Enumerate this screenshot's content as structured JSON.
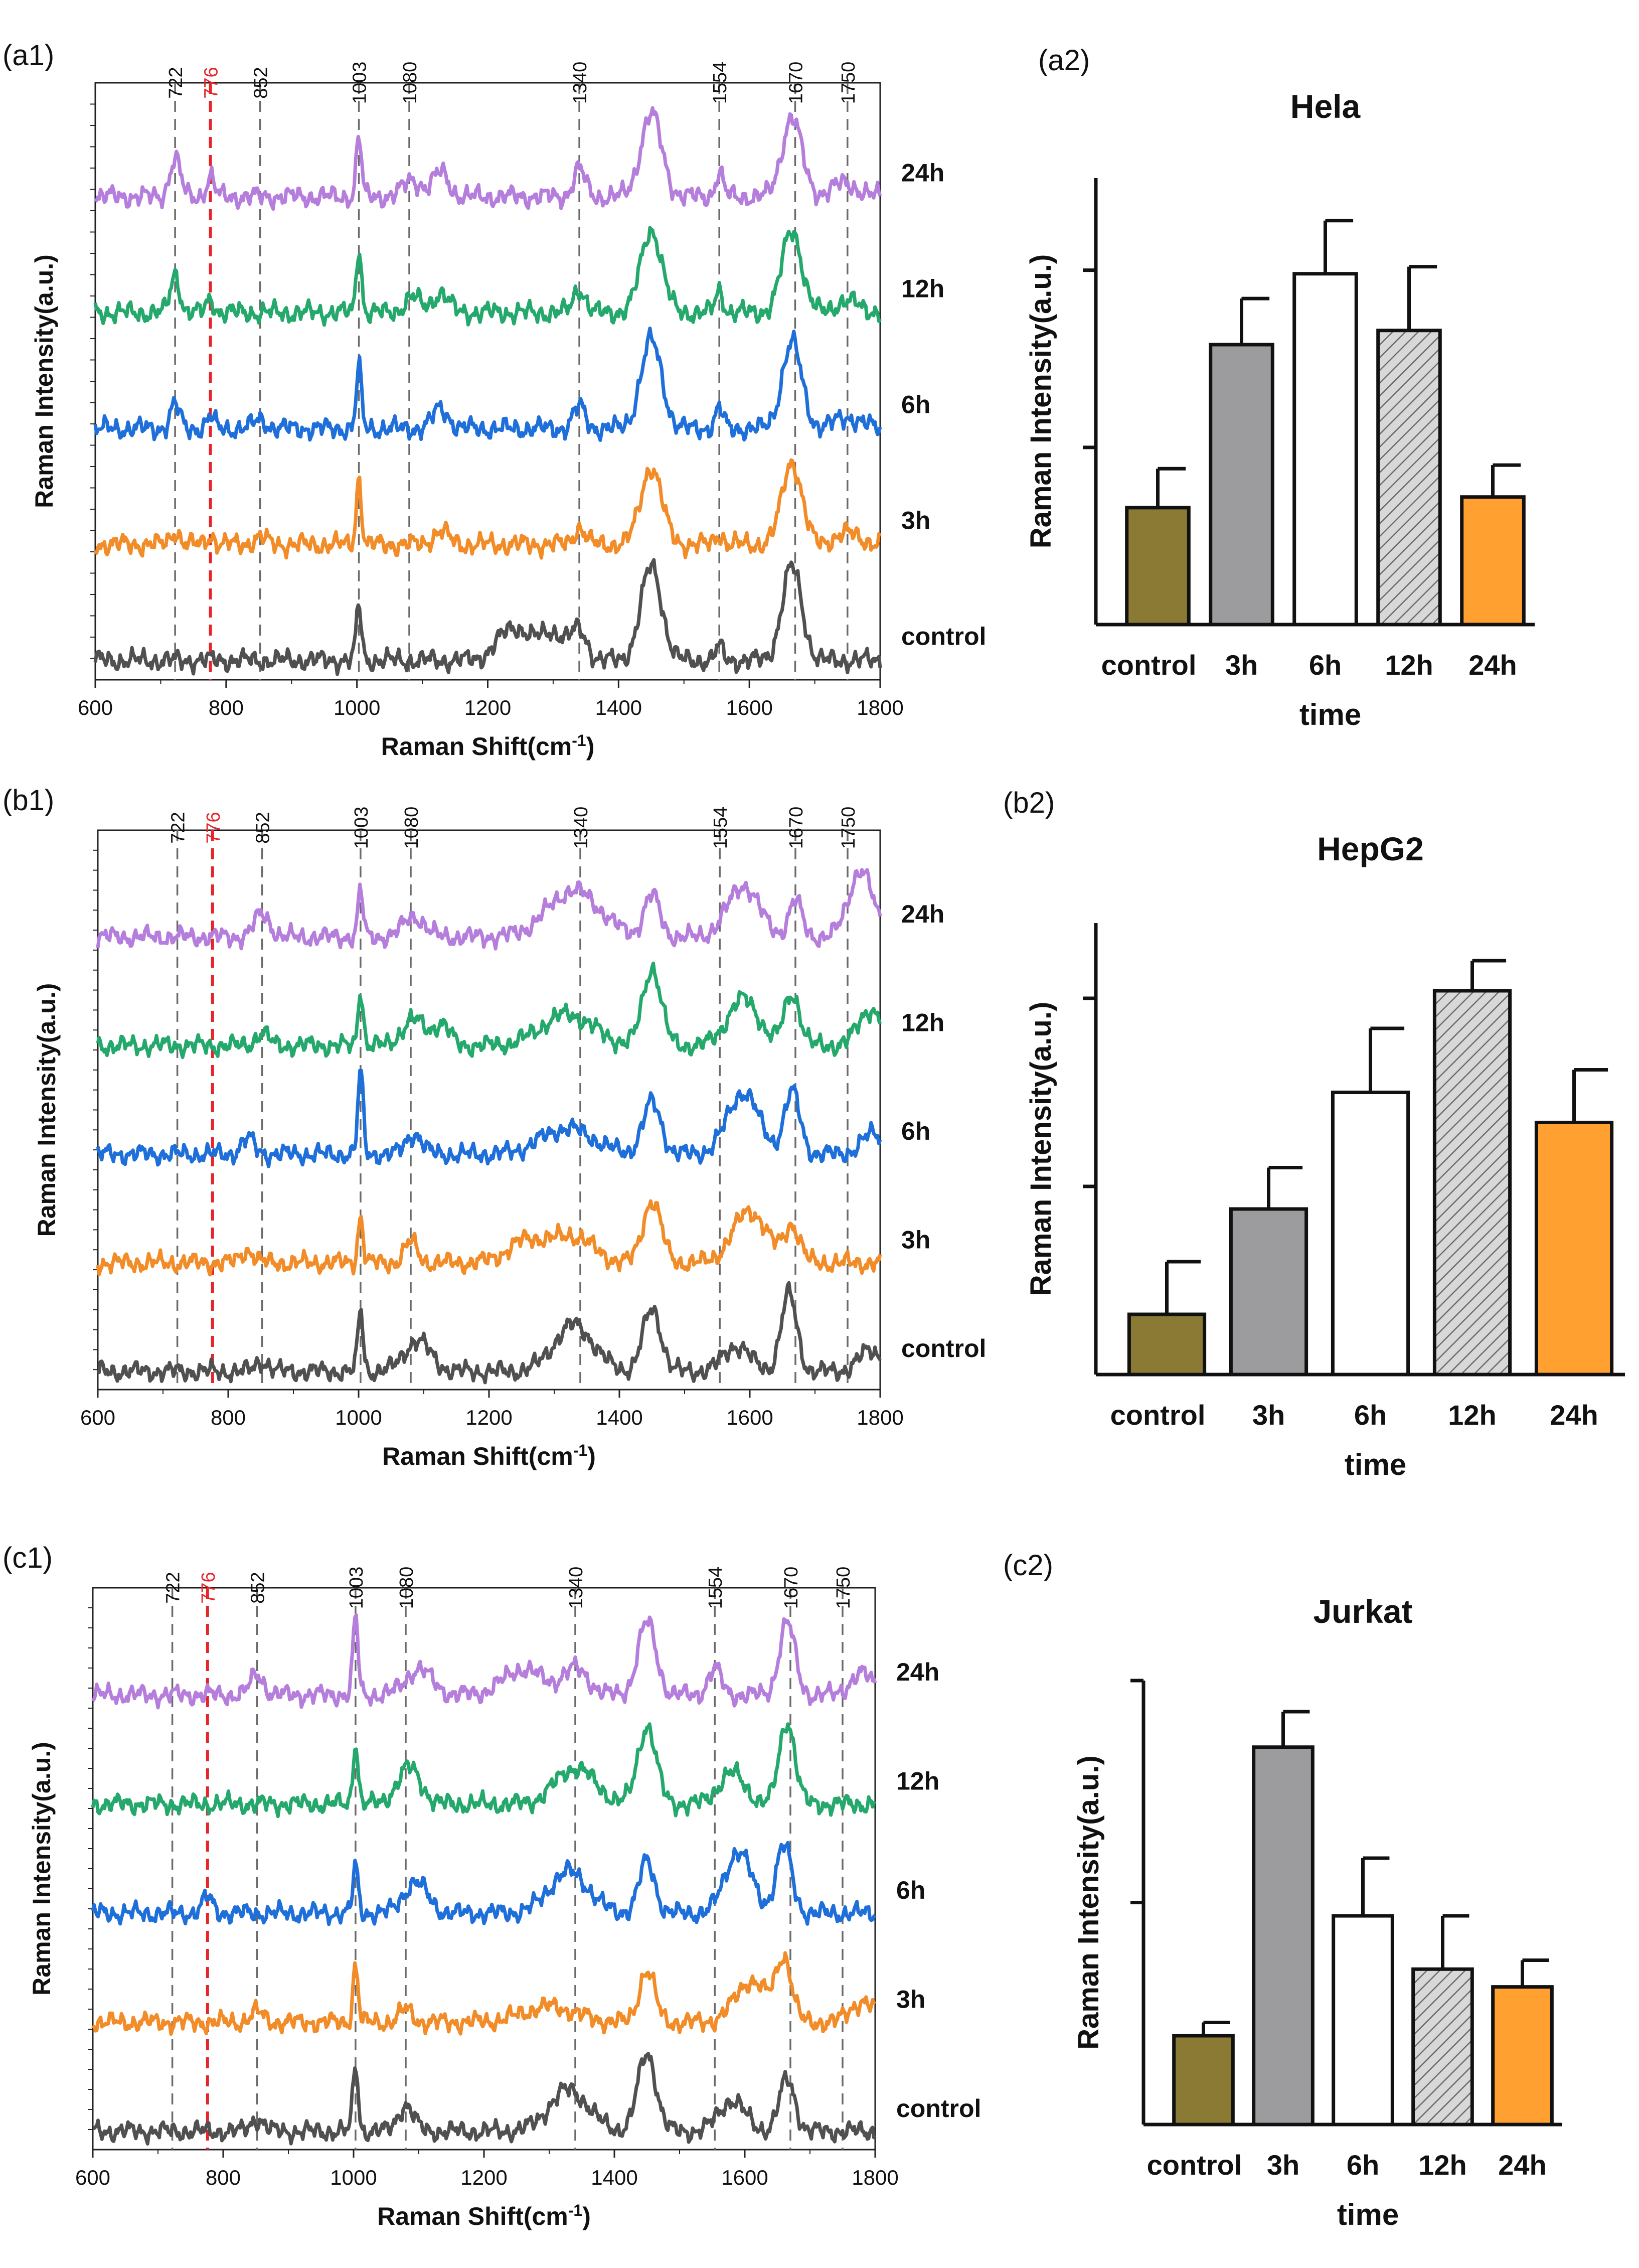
{
  "colors": {
    "spec_24h": "#B57EDC",
    "spec_12h": "#25A86B",
    "spec_6h": "#1E6FD9",
    "spec_3h": "#F28C28",
    "spec_control": "#505050",
    "marker_highlight": "#E5252A",
    "marker": "#6b6b6b",
    "bar_control": "#8B7A33",
    "bar_3h": "#9C9C9E",
    "bar_6h": "#FFFFFF",
    "bar_12h": "#D8D8D8",
    "bar_24h": "#FFA030"
  },
  "chart_data": [
    {
      "id": "a1",
      "panel_label": "(a1)",
      "type": "line",
      "title": "",
      "xlabel": "Raman Shift(cm",
      "xlabel_sup": "-1",
      "xlabel_tail": ")",
      "ylabel": "Raman Intensity(a.u.)",
      "xlim": [
        600,
        1800
      ],
      "xticks": [
        "600",
        "800",
        "1000",
        "1200",
        "1400",
        "1600",
        "1800"
      ],
      "markers": [
        "722",
        "776",
        "852",
        "1003",
        "1080",
        "1340",
        "1554",
        "1670",
        "1750"
      ],
      "highlight_marker": "776",
      "series": [
        {
          "name": "24h",
          "offset": 4,
          "peaks": [
            [
              722,
              0.35,
              8
            ],
            [
              776,
              0.18,
              6
            ],
            [
              1003,
              0.55,
              4
            ],
            [
              1085,
              0.15,
              14
            ],
            [
              1128,
              0.22,
              12
            ],
            [
              1340,
              0.25,
              9
            ],
            [
              1450,
              0.75,
              16
            ],
            [
              1554,
              0.22,
              6
            ],
            [
              1665,
              0.72,
              15
            ],
            [
              1745,
              0.12,
              20
            ]
          ]
        },
        {
          "name": "12h",
          "offset": 3,
          "peaks": [
            [
              722,
              0.35,
              7
            ],
            [
              776,
              0.12,
              6
            ],
            [
              1003,
              0.6,
              4
            ],
            [
              1085,
              0.14,
              12
            ],
            [
              1128,
              0.18,
              12
            ],
            [
              1340,
              0.22,
              9
            ],
            [
              1450,
              0.75,
              16
            ],
            [
              1554,
              0.2,
              6
            ],
            [
              1665,
              0.75,
              15
            ],
            [
              1750,
              0.1,
              20
            ]
          ]
        },
        {
          "name": "6h",
          "offset": 2,
          "peaks": [
            [
              722,
              0.22,
              7
            ],
            [
              776,
              0.1,
              6
            ],
            [
              852,
              0.08,
              10
            ],
            [
              1003,
              0.55,
              4
            ],
            [
              1128,
              0.18,
              12
            ],
            [
              1340,
              0.2,
              9
            ],
            [
              1450,
              0.8,
              16
            ],
            [
              1554,
              0.18,
              6
            ],
            [
              1665,
              0.78,
              15
            ],
            [
              1750,
              0.1,
              20
            ]
          ]
        },
        {
          "name": "3h",
          "offset": 1,
          "peaks": [
            [
              722,
              0.12,
              7
            ],
            [
              776,
              0.08,
              6
            ],
            [
              852,
              0.06,
              10
            ],
            [
              1003,
              0.6,
              4
            ],
            [
              1128,
              0.12,
              12
            ],
            [
              1340,
              0.15,
              9
            ],
            [
              1450,
              0.7,
              16
            ],
            [
              1554,
              0.1,
              6
            ],
            [
              1665,
              0.75,
              15
            ],
            [
              1750,
              0.1,
              20
            ]
          ]
        },
        {
          "name": "control",
          "offset": 0,
          "peaks": [
            [
              1003,
              0.5,
              4
            ],
            [
              1240,
              0.3,
              24
            ],
            [
              1300,
              0.25,
              20
            ],
            [
              1340,
              0.25,
              12
            ],
            [
              1450,
              0.85,
              16
            ],
            [
              1554,
              0.12,
              6
            ],
            [
              1665,
              0.85,
              15
            ]
          ]
        }
      ]
    },
    {
      "id": "a2",
      "panel_label": "(a2)",
      "type": "bar",
      "title": "Hela",
      "xlabel": "time",
      "ylabel": "Raman Intensity(a.u.)",
      "categories": [
        "control",
        "3h",
        "6h",
        "12h",
        "24h"
      ],
      "values": [
        0.33,
        0.79,
        0.99,
        0.83,
        0.36
      ],
      "errors": [
        0.11,
        0.13,
        0.15,
        0.18,
        0.09
      ],
      "ylim": [
        0,
        1.26
      ],
      "yticks": [
        0.5,
        1.0
      ]
    },
    {
      "id": "b1",
      "panel_label": "(b1)",
      "type": "line",
      "title": "",
      "xlabel": "Raman Shift(cm",
      "xlabel_sup": "-1",
      "xlabel_tail": ")",
      "ylabel": "Raman Intensity(a.u.)",
      "xlim": [
        600,
        1800
      ],
      "xticks": [
        "600",
        "800",
        "1000",
        "1200",
        "1400",
        "1600",
        "1800"
      ],
      "markers": [
        "722",
        "776",
        "852",
        "1003",
        "1080",
        "1340",
        "1554",
        "1670",
        "1750"
      ],
      "highlight_marker": "776",
      "series": [
        {
          "name": "24h",
          "offset": 4,
          "peaks": [
            [
              852,
              0.22,
              12
            ],
            [
              1003,
              0.45,
              4
            ],
            [
              1085,
              0.2,
              16
            ],
            [
              1330,
              0.45,
              40
            ],
            [
              1450,
              0.4,
              12
            ],
            [
              1590,
              0.5,
              24
            ],
            [
              1670,
              0.35,
              10
            ],
            [
              1770,
              0.65,
              18
            ]
          ]
        },
        {
          "name": "12h",
          "offset": 3,
          "peaks": [
            [
              852,
              0.12,
              10
            ],
            [
              1003,
              0.55,
              4
            ],
            [
              1085,
              0.25,
              18
            ],
            [
              1128,
              0.2,
              12
            ],
            [
              1320,
              0.3,
              40
            ],
            [
              1450,
              0.75,
              14
            ],
            [
              1590,
              0.45,
              24
            ],
            [
              1665,
              0.5,
              12
            ],
            [
              1785,
              0.35,
              18
            ]
          ]
        },
        {
          "name": "6h",
          "offset": 2,
          "peaks": [
            [
              830,
              0.15,
              10
            ],
            [
              1003,
              0.8,
              4
            ],
            [
              1085,
              0.2,
              12
            ],
            [
              1320,
              0.25,
              40
            ],
            [
              1450,
              0.5,
              14
            ],
            [
              1590,
              0.6,
              24
            ],
            [
              1665,
              0.6,
              12
            ],
            [
              1790,
              0.2,
              18
            ]
          ]
        },
        {
          "name": "3h",
          "offset": 1,
          "peaks": [
            [
              830,
              0.12,
              10
            ],
            [
              1003,
              0.45,
              4
            ],
            [
              1080,
              0.2,
              10
            ],
            [
              1260,
              0.22,
              30
            ],
            [
              1330,
              0.25,
              30
            ],
            [
              1450,
              0.6,
              14
            ],
            [
              1600,
              0.5,
              26
            ],
            [
              1665,
              0.35,
              12
            ]
          ]
        },
        {
          "name": "control",
          "offset": 0,
          "peaks": [
            [
              852,
              0.1,
              10
            ],
            [
              1003,
              0.6,
              4
            ],
            [
              1090,
              0.3,
              20
            ],
            [
              1330,
              0.45,
              30
            ],
            [
              1450,
              0.6,
              14
            ],
            [
              1580,
              0.25,
              20
            ],
            [
              1660,
              0.75,
              12
            ],
            [
              1785,
              0.2,
              18
            ]
          ]
        }
      ]
    },
    {
      "id": "b2",
      "panel_label": "(b2)",
      "type": "bar",
      "title": "HepG2",
      "xlabel": "time",
      "ylabel": "Raman Intensity(a.u.)",
      "categories": [
        "control",
        "3h",
        "6h",
        "12h",
        "24h"
      ],
      "values": [
        0.16,
        0.44,
        0.75,
        1.02,
        0.67
      ],
      "errors": [
        0.14,
        0.11,
        0.17,
        0.08,
        0.14
      ],
      "ylim": [
        0,
        1.2
      ],
      "yticks": [
        0.5,
        1.0
      ]
    },
    {
      "id": "c1",
      "panel_label": "(c1)",
      "type": "line",
      "title": "",
      "xlabel": "Raman Shift(cm",
      "xlabel_sup": "-1",
      "xlabel_tail": ")",
      "ylabel": "Raman Intensity(a.u.)",
      "xlim": [
        600,
        1800
      ],
      "xticks": [
        "600",
        "800",
        "1000",
        "1200",
        "1400",
        "1600",
        "1800"
      ],
      "markers": [
        "722",
        "776",
        "852",
        "1003",
        "1080",
        "1340",
        "1554",
        "1670",
        "1750"
      ],
      "highlight_marker": "776",
      "series": [
        {
          "name": "24h",
          "offset": 4,
          "peaks": [
            [
              852,
              0.2,
              10
            ],
            [
              1003,
              0.75,
              4
            ],
            [
              1100,
              0.25,
              20
            ],
            [
              1260,
              0.25,
              30
            ],
            [
              1340,
              0.25,
              20
            ],
            [
              1450,
              0.7,
              14
            ],
            [
              1554,
              0.25,
              10
            ],
            [
              1665,
              0.7,
              12
            ],
            [
              1780,
              0.2,
              18
            ]
          ]
        },
        {
          "name": "12h",
          "offset": 3,
          "peaks": [
            [
              1003,
              0.6,
              4
            ],
            [
              1085,
              0.35,
              18
            ],
            [
              1340,
              0.35,
              30
            ],
            [
              1450,
              0.75,
              14
            ],
            [
              1580,
              0.3,
              20
            ],
            [
              1665,
              0.8,
              12
            ]
          ]
        },
        {
          "name": "6h",
          "offset": 2,
          "peaks": [
            [
              776,
              0.15,
              8
            ],
            [
              1003,
              0.45,
              4
            ],
            [
              1095,
              0.3,
              18
            ],
            [
              1330,
              0.4,
              30
            ],
            [
              1450,
              0.5,
              12
            ],
            [
              1590,
              0.6,
              20
            ],
            [
              1660,
              0.65,
              12
            ]
          ]
        },
        {
          "name": "3h",
          "offset": 1,
          "peaks": [
            [
              852,
              0.1,
              10
            ],
            [
              1003,
              0.55,
              4
            ],
            [
              1080,
              0.12,
              10
            ],
            [
              1300,
              0.15,
              40
            ],
            [
              1450,
              0.5,
              12
            ],
            [
              1610,
              0.4,
              24
            ],
            [
              1660,
              0.6,
              12
            ],
            [
              1780,
              0.2,
              18
            ]
          ]
        },
        {
          "name": "control",
          "offset": 0,
          "peaks": [
            [
              852,
              0.12,
              10
            ],
            [
              1003,
              0.65,
              4
            ],
            [
              1080,
              0.25,
              12
            ],
            [
              1330,
              0.4,
              30
            ],
            [
              1450,
              0.75,
              14
            ],
            [
              1580,
              0.3,
              20
            ],
            [
              1665,
              0.5,
              12
            ]
          ]
        }
      ]
    },
    {
      "id": "c2",
      "panel_label": "(c2)",
      "type": "bar",
      "title": "Jurkat",
      "xlabel": "time",
      "ylabel": "Raman Intensity(a.u.)",
      "categories": [
        "control",
        "3h",
        "6h",
        "12h",
        "24h"
      ],
      "values": [
        0.2,
        0.85,
        0.47,
        0.35,
        0.31
      ],
      "errors": [
        0.03,
        0.08,
        0.13,
        0.12,
        0.06
      ],
      "ylim": [
        0,
        1.0
      ],
      "yticks": [
        0.5,
        1.0
      ]
    }
  ]
}
